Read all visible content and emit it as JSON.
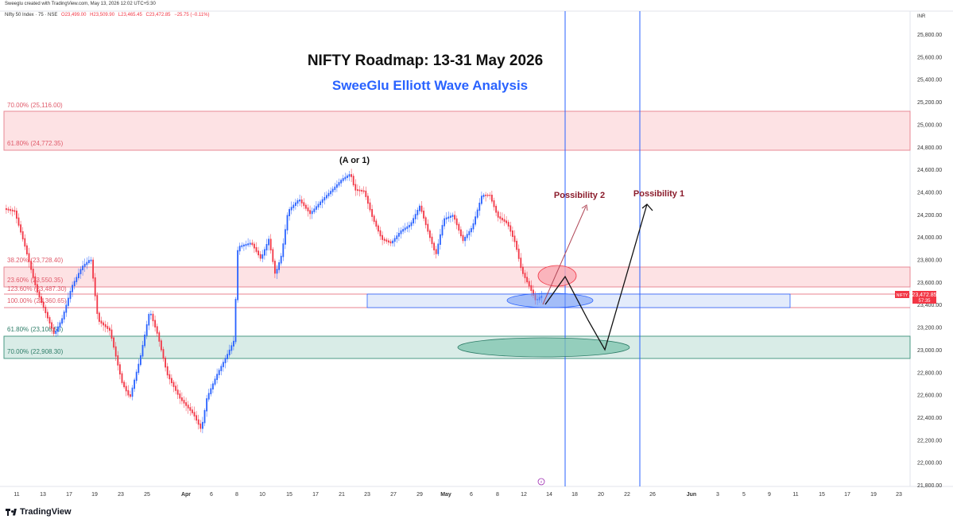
{
  "header": {
    "credit": "Sweeglu created with TradingView.com, May 13, 2026 12:02 UTC+5:30",
    "symbol": "Nifty 50 Index · 75 · NSE",
    "open": "O23,499.00",
    "high": "H23,509.90",
    "low": "L23,465.45",
    "close": "C23,472.85",
    "change": "−25.75 (−0.11%)",
    "currency": "INR"
  },
  "title": "NIFTY Roadmap: 13-31 May 2026",
  "subtitle": "SweeGlu Elliott Wave Analysis",
  "annotations": {
    "wave_label": "(A or 1)",
    "possibility_1": "Possibility 1",
    "possibility_2": "Possibility 2"
  },
  "price_axis": {
    "ticks": [
      "25,800.00",
      "25,600.00",
      "25,400.00",
      "25,200.00",
      "25,000.00",
      "24,800.00",
      "24,600.00",
      "24,400.00",
      "24,200.00",
      "24,000.00",
      "23,800.00",
      "23,600.00",
      "23,400.00",
      "23,200.00",
      "23,000.00",
      "22,800.00",
      "22,600.00",
      "22,400.00",
      "22,200.00",
      "22,000.00",
      "21,800.00"
    ],
    "current_label": "NIFTY",
    "current_price": "23,472.85",
    "countdown": "57:35"
  },
  "time_axis": [
    "11",
    "13",
    "17",
    "19",
    "23",
    "25",
    "Apr",
    "6",
    "8",
    "10",
    "15",
    "17",
    "21",
    "23",
    "27",
    "29",
    "May",
    "6",
    "8",
    "12",
    "14",
    "18",
    "20",
    "22",
    "26",
    "Jun",
    "3",
    "5",
    "9",
    "11",
    "15",
    "17",
    "19",
    "23"
  ],
  "fib_levels": [
    {
      "label": "70.00% (25,116.00)",
      "color": "#e05a6a"
    },
    {
      "label": "61.80% (24,772.35)",
      "color": "#e05a6a"
    },
    {
      "label": "38.20% (23,728.40)",
      "color": "#e05a6a"
    },
    {
      "label": "23.60% (23,550.35)",
      "color": "#e05a6a"
    },
    {
      "label": "123.60% (23,487.30)",
      "color": "#e05a6a"
    },
    {
      "label": "100.00% (23,360.65)",
      "color": "#e05a6a"
    },
    {
      "label": "61.80% (23,108.55)",
      "color": "#2e7d68"
    },
    {
      "label": "70.00% (22,908.30)",
      "color": "#2e7d68"
    }
  ],
  "colors": {
    "up": "#2962ff",
    "down": "#f23645",
    "title": "#111111",
    "subtitle": "#2962ff",
    "possibility": "#8b1c2c",
    "red_zone": "#fde2e4",
    "green_zone": "#d9ece7",
    "blue_zone": "#e3ebfb"
  },
  "brand": "TradingView"
}
